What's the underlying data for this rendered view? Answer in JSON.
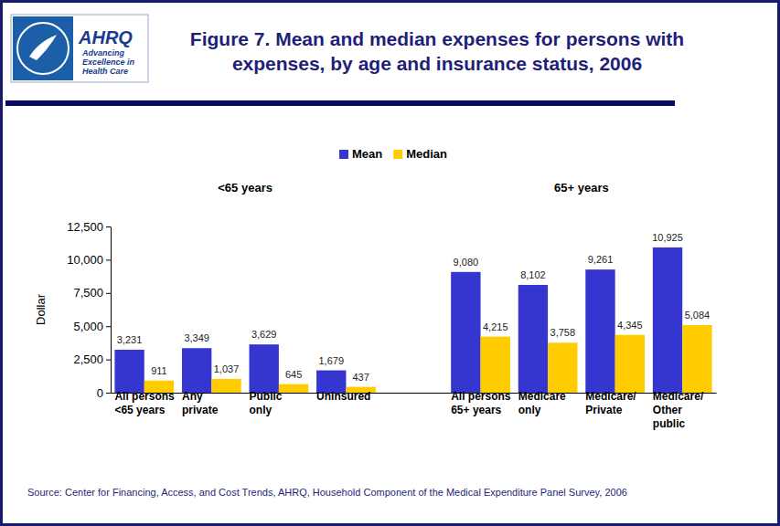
{
  "chart_data": {
    "type": "bar",
    "title": "Figure 7. Mean and median expenses for persons with\nexpenses, by age and insurance status, 2006",
    "ylabel": "Dollar",
    "annotations": [
      "<65 years",
      "65+ years",
      "Source: Center for Financing, Access, and Cost Trends, AHRQ, Household Component of the Medical Expenditure Panel Survey, 2006",
      "AHRQ",
      "Advancing\nExcellence in\nHealth Care"
    ],
    "categories": [
      "All persons\n<65 years",
      "Any\nprivate",
      "Public\nonly",
      "Uninsured",
      null,
      "All persons\n65+ years",
      "Medicare\nonly",
      "Medicare/\nPrivate",
      "Medicare/\nOther\npublic"
    ],
    "series": [
      {
        "name": "Mean",
        "color": "#3535d0",
        "values": [
          3231,
          3349,
          3629,
          1679,
          null,
          9080,
          8102,
          9261,
          10925
        ],
        "value_labels": [
          "3,231",
          "3,349",
          "3,629",
          "1,679",
          null,
          "9,080",
          "8,102",
          "9,261",
          "10,925"
        ]
      },
      {
        "name": "Median",
        "color": "#ffcc00",
        "values": [
          911,
          1037,
          645,
          437,
          null,
          4215,
          3758,
          4345,
          5084
        ],
        "value_labels": [
          "911",
          "1,037",
          "645",
          "437",
          null,
          "4,215",
          "3,758",
          "4,345",
          "5,084"
        ]
      }
    ],
    "ylim": [
      0,
      12500
    ],
    "yticks": [
      0,
      {
        "value": 2500,
        "label": "2,500"
      },
      {
        "value": 5000,
        "label": "5,000"
      },
      {
        "value": 7500,
        "label": "7,500"
      },
      {
        "value": 10000,
        "label": "10,000"
      },
      {
        "value": 12500,
        "label": "12,500"
      }
    ],
    "grid": false,
    "legend": "top",
    "data_labels": true
  }
}
